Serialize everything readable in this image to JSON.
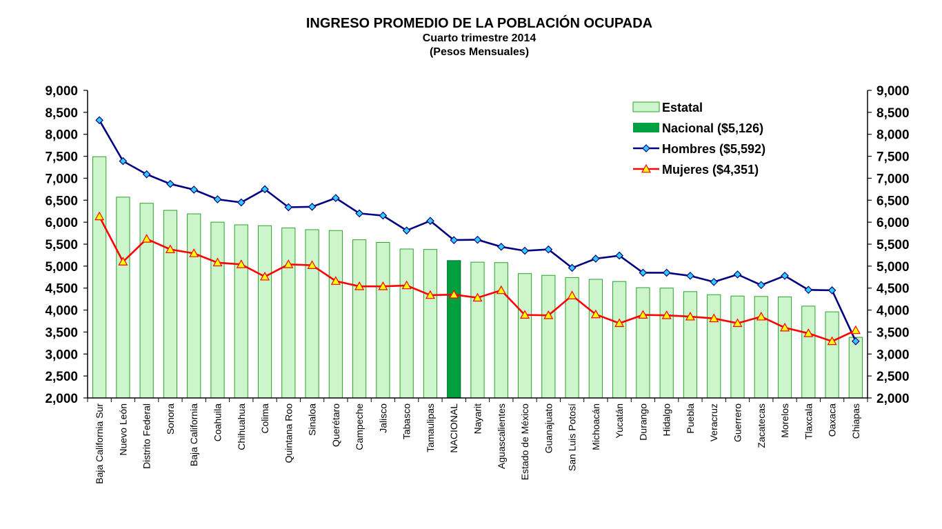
{
  "chart_data": {
    "type": "bar",
    "title": "INGRESO PROMEDIO DE LA POBLACIÓN OCUPADA",
    "subtitle": "Cuarto trimestre 2014",
    "unit_label": "(Pesos Mensuales)",
    "categories": [
      "Baja California Sur",
      "Nuevo León",
      "Distrito Federal",
      "Sonora",
      "Baja California",
      "Coahuila",
      "Chihuahua",
      "Colima",
      "Quintana Roo",
      "Sinaloa",
      "Querétaro",
      "Campeche",
      "Jalisco",
      "Tabasco",
      "Tamaulipas",
      "NACIONAL",
      "Nayarit",
      "Aguascalientes",
      "Estado de México",
      "Guanajuato",
      "San Luis Potosí",
      "Michoacán",
      "Yucatán",
      "Durango",
      "Hidalgo",
      "Puebla",
      "Veracruz",
      "Guerrero",
      "Zacatecas",
      "Morelos",
      "Tlaxcala",
      "Oaxaca",
      "Chiapas"
    ],
    "highlight_category": "NACIONAL",
    "ylim": [
      2000,
      9000
    ],
    "yticks": [
      "2,000",
      "2,500",
      "3,000",
      "3,500",
      "4,000",
      "4,500",
      "5,000",
      "5,500",
      "6,000",
      "6,500",
      "7,000",
      "7,500",
      "8,000",
      "8,500",
      "9,000"
    ],
    "secondary_axis": true,
    "legend_position": "top-right",
    "series": [
      {
        "name": "Estatal",
        "kind": "bar",
        "color": "#ccf5cc",
        "edge": "#2ca02c",
        "values": [
          7490,
          6570,
          6430,
          6270,
          6190,
          6000,
          5940,
          5920,
          5870,
          5830,
          5810,
          5600,
          5540,
          5390,
          5380,
          5126,
          5090,
          5080,
          4830,
          4790,
          4740,
          4700,
          4650,
          4510,
          4500,
          4420,
          4350,
          4320,
          4310,
          4300,
          4090,
          3960,
          3380
        ]
      },
      {
        "name": "Nacional ($5,126)",
        "kind": "bar",
        "color": "#00a040"
      },
      {
        "name": "Hombres ($5,592)",
        "kind": "line",
        "color": "#000080",
        "marker_color": "#33ccff",
        "values": [
          8320,
          7390,
          7090,
          6870,
          6740,
          6520,
          6450,
          6750,
          6340,
          6350,
          6550,
          6200,
          6150,
          5810,
          6030,
          5592,
          5600,
          5440,
          5350,
          5380,
          4960,
          5170,
          5240,
          4850,
          4850,
          4780,
          4640,
          4810,
          4570,
          4780,
          4460,
          4450,
          3290
        ]
      },
      {
        "name": "Mujeres ($4,351)",
        "kind": "line",
        "color": "#ff0000",
        "marker_color": "#ffff00",
        "values": [
          6130,
          5100,
          5620,
          5380,
          5290,
          5080,
          5040,
          4760,
          5040,
          5020,
          4660,
          4540,
          4540,
          4560,
          4340,
          4351,
          4280,
          4450,
          3890,
          3880,
          4330,
          3900,
          3700,
          3890,
          3880,
          3850,
          3810,
          3700,
          3850,
          3600,
          3470,
          3290,
          3540
        ]
      }
    ]
  }
}
